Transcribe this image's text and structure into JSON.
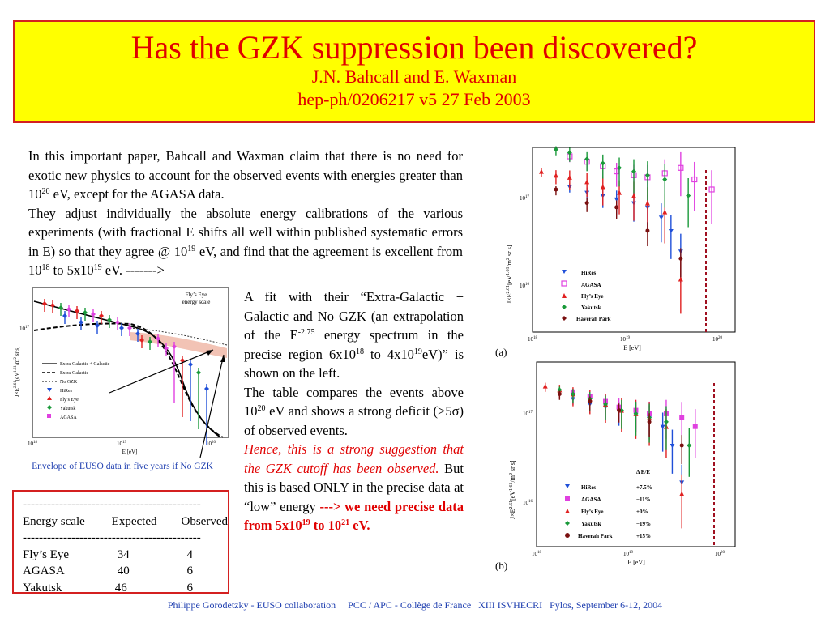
{
  "header": {
    "title": "Has the GZK suppression been discovered?",
    "authors": "J.N. Bahcall and E. Waxman",
    "reference": "hep-ph/0206217 v5 27 Feb 2003"
  },
  "intro": {
    "p1_a": "In this important paper, Bahcall and Waxman claim that there is no need for exotic new physics to account for the observed events with energies greater than 10",
    "p1_sup": "20",
    "p1_b": " eV, except for the AGASA data.",
    "p2_a": "They adjust individually the absolute energy calibrations of the various experiments (with fractional E shifts all well within published systematic errors in E) so that they agree @ 10",
    "p2_sup1": "19",
    "p2_b": " eV, and find that the agreement is excellent from 10",
    "p2_sup2": "18",
    "p2_c": " to 5x10",
    "p2_sup3": "19",
    "p2_d": " eV. ------->"
  },
  "fit_text": {
    "a": "A fit with their “Extra-Galactic + Galactic and No GZK (an extrapolation of the E",
    "sup1": "-2.75",
    "b": " energy spectrum in the precise region 6x10",
    "sup2": "18",
    "c": " to 4x10",
    "sup3": "19",
    "d": "eV)” is shown on the left.",
    "table_a": "The table compares the events above 10",
    "table_sup": "20",
    "table_b": " eV and shows a strong deficit (>5σ) of observed events.",
    "red_italic": "Hence, this is a strong suggestion that the GZK cutoff has been observed.",
    "but_text": " But this is based ONLY in the precise data at “low” energy ",
    "red_bold_a": "---> we need precise data from 5x10",
    "red_bold_sup1": "19",
    "red_bold_b": " to 10",
    "red_bold_sup2": "21",
    "red_bold_c": " eV."
  },
  "caption": "Envelope of EUSO data in five years if No GZK",
  "table": {
    "dashes": "--------------------------------------------",
    "headers": [
      "Energy scale",
      "Expected",
      "Observed"
    ],
    "rows": [
      [
        "Fly’s Eye",
        "34",
        "4"
      ],
      [
        "AGASA",
        "40",
        "6"
      ],
      [
        "Yakutsk",
        "46",
        "6"
      ]
    ]
  },
  "footer": "Philippe Gorodetzky - EUSO collaboration     PCC / APC - Collège de France   XIII ISVHECRI   Pylos, September 6-12, 2004",
  "plot_left": {
    "energy_scale": [
      "Fly’s Eye",
      "energy scale"
    ],
    "y_tick": "10",
    "y_tick_sup": "17",
    "y_label": "J×E",
    "y_label_sup": "2.61",
    "y_label_units": "[eV",
    "y_label_units_sup": "1.61",
    "y_label_units_b": "/m",
    "y_label_units_sup2": "2",
    "y_label_units_c": " sr s]",
    "x_ticks": [
      "10",
      "10",
      "10"
    ],
    "x_tick_sups": [
      "18",
      "19",
      "20"
    ],
    "x_label": "E  [eV]",
    "legend": [
      "Extra-Galactic + Galactic",
      "Extra-Galactic",
      "No GZK",
      "HiRes",
      "Fly’s Eye",
      "Yakutsk",
      "AGASA"
    ]
  },
  "plot_a": {
    "label": "(a)",
    "y_ticks": [
      "10",
      "10"
    ],
    "y_tick_sups": [
      "17",
      "16"
    ],
    "y_label": "J×E",
    "y_label_sup": "2.61",
    "y_label_units": "[eV",
    "y_label_units_sup": "1.61",
    "y_label_units_b": "/m",
    "y_label_units_sup2": "2",
    "y_label_units_c": " sr s]",
    "x_ticks": [
      "10",
      "10",
      "10"
    ],
    "x_tick_sups": [
      "18",
      "19",
      "20"
    ],
    "x_label": "E  [eV]",
    "legend": [
      "HiRes",
      "AGASA",
      "Fly’s Eye",
      "Yakutsk",
      "Haverah Park"
    ]
  },
  "plot_b": {
    "label": "(b)",
    "y_ticks": [
      "10",
      "10"
    ],
    "y_tick_sups": [
      "17",
      "16"
    ],
    "y_label": "J×E",
    "y_label_sup": "2.61",
    "y_label_units": "[eV",
    "y_label_units_sup": "1.61",
    "y_label_units_b": "/m",
    "y_label_units_sup2": "2",
    "y_label_units_c": " sr s]",
    "x_ticks": [
      "10",
      "10",
      "10"
    ],
    "x_tick_sups": [
      "18",
      "19",
      "20"
    ],
    "x_label": "E  [eV]",
    "shift_header": "Δ E/E",
    "legend": [
      "HiRes",
      "AGASA",
      "Fly’s Eye",
      "Yakutsk",
      "Haverah Park"
    ],
    "shifts": [
      "+7.5%",
      "−11%",
      "+0%",
      "−19%",
      "+15%"
    ]
  },
  "colors": {
    "title_red": "#e00000",
    "title_bg": "#ffff00",
    "caption_blue": "#1f3fb0",
    "hires": "#1f4fd8",
    "agasa": "#e040e0",
    "flyseye": "#e02020",
    "yakutsk": "#1a9a3a",
    "haverah": "#7a1010"
  },
  "chart_data": [
    {
      "type": "scatter",
      "label": "(a)",
      "xlabel": "E  [eV]",
      "ylabel": "J×E^2.61 [eV^1.61/m^2 sr s]",
      "x_scale": "log",
      "y_scale": "log",
      "xlim": [
        1e+18,
        4e+20
      ],
      "ylim": [
        4000000000000000.0,
        4e+17
      ],
      "series": [
        {
          "name": "HiRes",
          "x": [
            3e+18,
            5e+18,
            8e+18,
            1.2e+19,
            2e+19,
            3e+19,
            4.5e+19,
            6e+19,
            8e+19
          ],
          "y": [
            1.5e+17,
            1.3e+17,
            1.2e+17,
            1.1e+17,
            1e+17,
            9e+16,
            7e+16,
            5e+16,
            3e+16
          ]
        },
        {
          "name": "AGASA",
          "x": [
            3e+18,
            5e+18,
            8e+18,
            1.2e+19,
            2e+19,
            3e+19,
            5e+19,
            8e+19,
            1.2e+20,
            2e+20
          ],
          "y": [
            3.2e+17,
            2.8e+17,
            2.5e+17,
            2.2e+17,
            2e+17,
            1.9e+17,
            2.1e+17,
            2.4e+17,
            1.8e+17,
            1.4e+17
          ]
        },
        {
          "name": "Fly’s Eye",
          "x": [
            1.3e+18,
            2e+18,
            3e+18,
            5e+18,
            8e+18,
            1.3e+19,
            2e+19,
            3e+19,
            5e+19,
            8e+19
          ],
          "y": [
            2.2e+17,
            2e+17,
            1.9e+17,
            1.7e+17,
            1.5e+17,
            1.3e+17,
            1.2e+17,
            1e+17,
            8e+16,
            1.5e+16
          ]
        },
        {
          "name": "Yakutsk",
          "x": [
            2e+18,
            3e+18,
            5e+18,
            8e+18,
            1.3e+19,
            2e+19,
            3e+19,
            5e+19,
            1e+20
          ],
          "y": [
            3.8e+17,
            3.5e+17,
            3e+17,
            2.7e+17,
            2.4e+17,
            2.2e+17,
            2e+17,
            1.8e+17,
            1.2e+17
          ]
        },
        {
          "name": "Haverah Park",
          "x": [
            2e+18,
            5e+18,
            1.2e+19,
            3e+19,
            8e+19
          ],
          "y": [
            1.4e+17,
            1e+17,
            9e+16,
            5e+16,
            2.5e+16
          ]
        }
      ]
    },
    {
      "type": "scatter",
      "label": "(b)",
      "xlabel": "E  [eV]",
      "ylabel": "J×E^2.61 [eV^1.61/m^2 sr s]",
      "x_scale": "log",
      "y_scale": "log",
      "xlim": [
        1e+18,
        4e+20
      ],
      "ylim": [
        4000000000000000.0,
        4e+17
      ],
      "series": [
        {
          "name": "HiRes",
          "x": [
            3e+18,
            5e+18,
            8e+18,
            1.2e+19,
            2e+19,
            3e+19,
            4.5e+19,
            6e+19,
            8e+19
          ],
          "y": [
            1.6e+17,
            1.4e+17,
            1.3e+17,
            1.2e+17,
            1.1e+17,
            1e+17,
            8e+16,
            5e+16,
            2e+16
          ]
        },
        {
          "name": "AGASA",
          "x": [
            3e+18,
            5e+18,
            8e+18,
            1.2e+19,
            2e+19,
            3e+19,
            5e+19,
            8e+19,
            1.2e+20
          ],
          "y": [
            1.9e+17,
            1.7e+17,
            1.5e+17,
            1.3e+17,
            1.2e+17,
            1.1e+17,
            1.1e+17,
            1e+17,
            8e+16
          ]
        },
        {
          "name": "Fly’s Eye",
          "x": [
            1.3e+18,
            2e+18,
            3e+18,
            5e+18,
            8e+18,
            1.3e+19,
            2e+19,
            3e+19,
            5e+19,
            8e+19
          ],
          "y": [
            2.2e+17,
            2e+17,
            1.8e+17,
            1.6e+17,
            1.4e+17,
            1.2e+17,
            1.1e+17,
            1e+17,
            8e+16,
            1.5e+16
          ]
        },
        {
          "name": "Yakutsk",
          "x": [
            2e+18,
            3e+18,
            5e+18,
            8e+18,
            1.3e+19,
            2e+19,
            3e+19,
            5e+19,
            1e+20
          ],
          "y": [
            2e+17,
            1.8e+17,
            1.6e+17,
            1.4e+17,
            1.2e+17,
            1.1e+17,
            1e+17,
            9e+16,
            5e+16
          ]
        },
        {
          "name": "Haverah Park",
          "x": [
            2e+18,
            5e+18,
            1.2e+19,
            3e+19,
            8e+19
          ],
          "y": [
            1.8e+17,
            1.5e+17,
            1.2e+17,
            9e+16,
            5e+16
          ]
        }
      ]
    }
  ]
}
